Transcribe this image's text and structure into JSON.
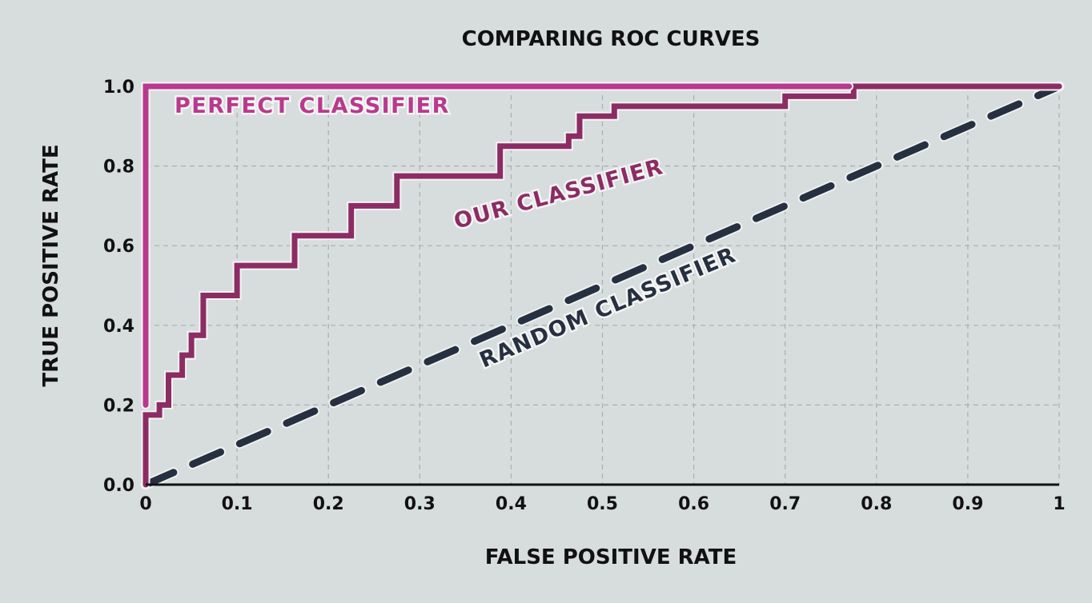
{
  "chart_data": {
    "type": "line",
    "title": "COMPARING ROC CURVES",
    "xlabel": "FALSE POSITIVE RATE",
    "ylabel": "TRUE POSITIVE RATE",
    "xlim": [
      0,
      1
    ],
    "ylim": [
      0,
      1
    ],
    "x_ticks": [
      0,
      0.1,
      0.2,
      0.3,
      0.4,
      0.5,
      0.6,
      0.7,
      0.8,
      0.9,
      1
    ],
    "x_tick_labels": [
      "0",
      "0.1",
      "0.2",
      "0.3",
      "0.4",
      "0.5",
      "0.6",
      "0.7",
      "0.8",
      "0.9",
      "1"
    ],
    "y_ticks": [
      0,
      0.2,
      0.4,
      0.6,
      0.8,
      1
    ],
    "y_tick_labels": [
      "0.0",
      "0.2",
      "0.4",
      "0.6",
      "0.8",
      "1.0"
    ],
    "grid": true,
    "legend": "none",
    "series": [
      {
        "name": "PERFECT CLASSIFIER",
        "color": "#b83a8e",
        "style": "solid",
        "x": [
          0,
          0,
          0.77
        ],
        "y": [
          0.2,
          1,
          1
        ]
      },
      {
        "name": "OUR CLASSIFIER",
        "color": "#8c2c64",
        "style": "solid",
        "x": [
          0,
          0,
          0.015,
          0.015,
          0.025,
          0.025,
          0.04,
          0.04,
          0.05,
          0.05,
          0.063,
          0.063,
          0.1,
          0.1,
          0.163,
          0.163,
          0.225,
          0.225,
          0.275,
          0.275,
          0.388,
          0.388,
          0.463,
          0.463,
          0.475,
          0.475,
          0.513,
          0.513,
          0.7,
          0.7,
          0.775,
          0.775,
          1
        ],
        "y": [
          0,
          0.175,
          0.175,
          0.2,
          0.2,
          0.275,
          0.275,
          0.325,
          0.325,
          0.375,
          0.375,
          0.475,
          0.475,
          0.55,
          0.55,
          0.625,
          0.625,
          0.7,
          0.7,
          0.775,
          0.775,
          0.85,
          0.85,
          0.875,
          0.875,
          0.925,
          0.925,
          0.95,
          0.95,
          0.975,
          0.975,
          1,
          1
        ]
      },
      {
        "name": "RANDOM CLASSIFIER",
        "color": "#263040",
        "style": "dashed",
        "x": [
          0,
          1
        ],
        "y": [
          0,
          1
        ]
      }
    ]
  }
}
